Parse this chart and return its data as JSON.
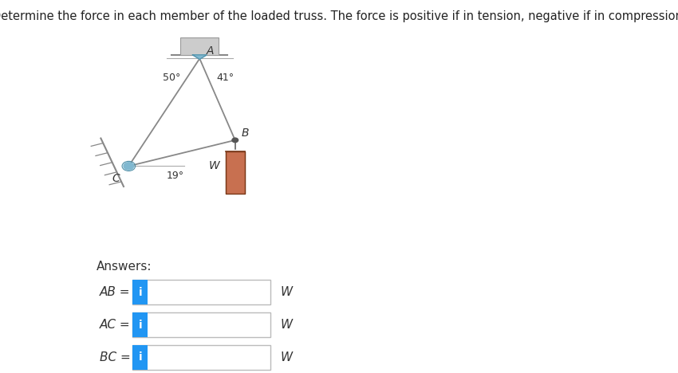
{
  "title": "Determine the force in each member of the loaded truss. The force is positive if in tension, negative if in compression.",
  "title_fontsize": 10.5,
  "bg_color": "#ffffff",
  "truss": {
    "A": [
      0.225,
      0.845
    ],
    "B": [
      0.295,
      0.625
    ],
    "C": [
      0.085,
      0.555
    ]
  },
  "member_color": "#888888",
  "weight_box_color": "#c87050",
  "info_btn_color": "#2196F3",
  "answer_rows": [
    {
      "label": "AB =",
      "unit": "W"
    },
    {
      "label": "AC =",
      "unit": "W"
    },
    {
      "label": "BC =",
      "unit": "W"
    }
  ],
  "input_box_color": "#ffffff",
  "input_border_color": "#bbbbbb",
  "info_btn_text": "i"
}
